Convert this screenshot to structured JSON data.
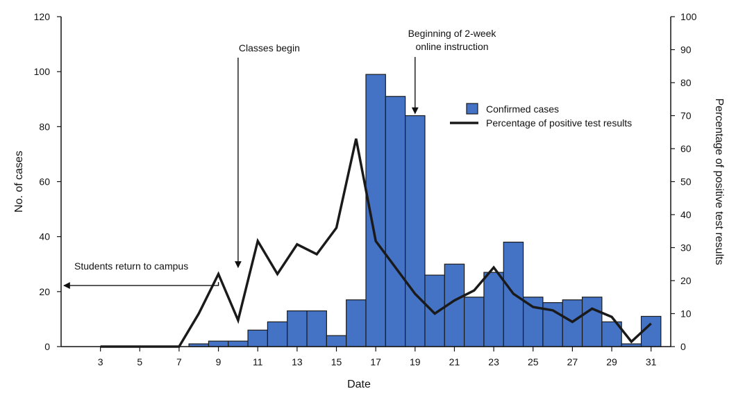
{
  "chart_data": {
    "type": "bar",
    "xlabel": "Date",
    "ylabel": "No. of cases",
    "y2label": "Percentage of positive test results",
    "xlim": [
      1,
      32
    ],
    "ylim": [
      0,
      120
    ],
    "y2lim": [
      0,
      100
    ],
    "x_ticks": [
      3,
      5,
      7,
      9,
      11,
      13,
      15,
      17,
      19,
      21,
      23,
      25,
      27,
      29,
      31
    ],
    "y_ticks": [
      0,
      20,
      40,
      60,
      80,
      100,
      120
    ],
    "y2_ticks": [
      0,
      10,
      20,
      30,
      40,
      50,
      60,
      70,
      80,
      90,
      100
    ],
    "grid": false,
    "legend_position": "upper-right",
    "colors": {
      "bars": "#4472c4",
      "bar_edge": "#1a1a1a",
      "line": "#1a1a1a"
    },
    "series": [
      {
        "name": "Confirmed cases",
        "type": "bar",
        "axis": "left",
        "x": [
          8,
          9,
          10,
          11,
          12,
          13,
          14,
          15,
          16,
          17,
          18,
          19,
          20,
          21,
          22,
          23,
          24,
          25,
          26,
          27,
          28,
          29,
          30,
          31
        ],
        "values": [
          1,
          2,
          2,
          6,
          9,
          13,
          13,
          4,
          17,
          99,
          91,
          84,
          26,
          30,
          18,
          27,
          38,
          18,
          16,
          17,
          18,
          9,
          1,
          11
        ]
      },
      {
        "name": "Percentage of positive test results",
        "type": "line",
        "axis": "right",
        "x": [
          3,
          4,
          5,
          6,
          7,
          8,
          9,
          10,
          11,
          12,
          13,
          14,
          15,
          16,
          17,
          18,
          19,
          20,
          21,
          22,
          23,
          24,
          25,
          26,
          27,
          28,
          29,
          30,
          31
        ],
        "values": [
          0,
          0,
          0,
          0,
          0,
          10,
          22,
          8,
          32,
          22,
          31,
          28,
          36,
          63,
          32,
          24,
          16,
          10,
          14,
          17,
          24,
          16,
          12,
          11,
          7.5,
          11.5,
          9,
          1.5,
          7
        ]
      }
    ],
    "annotations": [
      {
        "text": "Students return to campus",
        "x": 9,
        "y": 26,
        "arrow": "left"
      },
      {
        "text": "Classes begin",
        "x": 10,
        "y": 26,
        "arrow": "down"
      },
      {
        "text": "Beginning of 2-week",
        "text2": "online instruction",
        "x": 19,
        "y": 84,
        "arrow": "down"
      }
    ]
  }
}
